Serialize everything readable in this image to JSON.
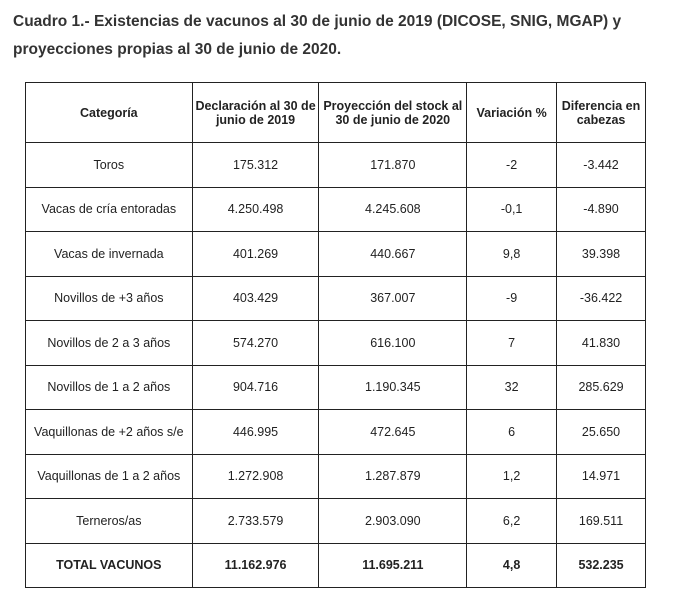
{
  "title": "Cuadro 1.- Existencias de vacunos al 30 de junio de 2019 (DICOSE, SNIG, MGAP) y proyecciones propias al 30 de junio de 2020.",
  "table": {
    "headers": [
      "Categoría",
      "Declaración al 30 de junio de 2019",
      "Proyección del stock al 30 de junio de 2020",
      "Variación %",
      "Diferencia en cabezas"
    ],
    "rows": [
      [
        "Toros",
        "175.312",
        "171.870",
        "-2",
        "-3.442"
      ],
      [
        "Vacas de cría entoradas",
        "4.250.498",
        "4.245.608",
        "-0,1",
        "-4.890"
      ],
      [
        "Vacas de invernada",
        "401.269",
        "440.667",
        "9,8",
        "39.398"
      ],
      [
        "Novillos de +3 años",
        "403.429",
        "367.007",
        "-9",
        "-36.422"
      ],
      [
        "Novillos de 2 a 3 años",
        "574.270",
        "616.100",
        "7",
        "41.830"
      ],
      [
        "Novillos de 1 a 2 años",
        "904.716",
        "1.190.345",
        "32",
        "285.629"
      ],
      [
        "Vaquillonas de +2 años s/e",
        "446.995",
        "472.645",
        "6",
        "25.650"
      ],
      [
        "Vaquillonas de 1 a 2 años",
        "1.272.908",
        "1.287.879",
        "1,2",
        "14.971"
      ],
      [
        "Terneros/as",
        "2.733.579",
        "2.903.090",
        "6,2",
        "169.511"
      ]
    ],
    "total": [
      "TOTAL VACUNOS",
      "11.162.976",
      "11.695.211",
      "4,8",
      "532.235"
    ]
  }
}
